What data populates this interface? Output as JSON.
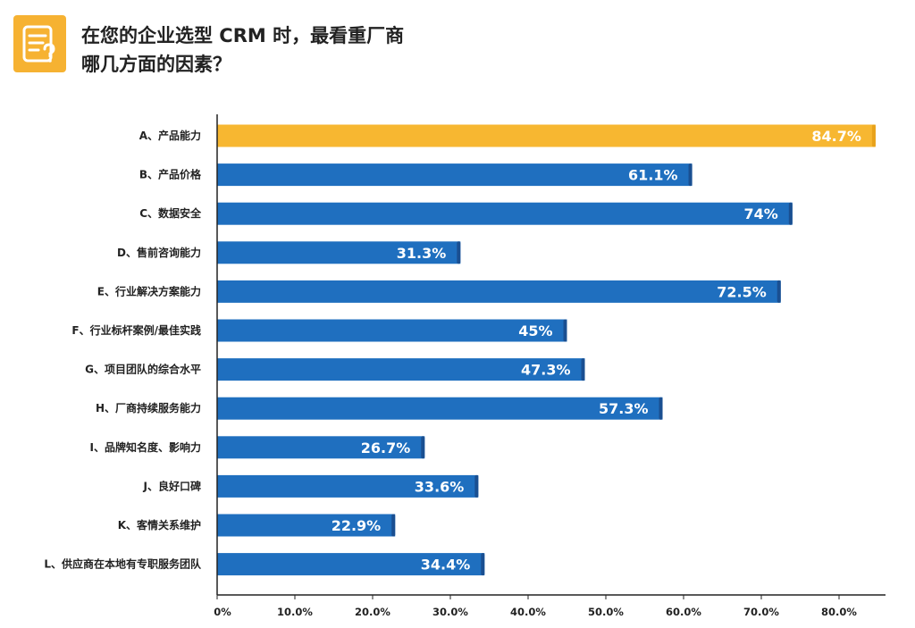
{
  "header": {
    "icon": "survey-question-icon",
    "title_line1": "在您的企业选型 CRM 时，最看重厂商",
    "title_line2": "哪几方面的因素？"
  },
  "colors": {
    "highlight": "#f7b731",
    "bar": "#1f6fbf",
    "bar_edge": "#1a4f91",
    "icon_bg": "#f6b232",
    "axis": "#222222"
  },
  "chart_data": {
    "type": "bar",
    "orientation": "horizontal",
    "categories": [
      "A、产品能力",
      "B、产品价格",
      "C、数据安全",
      "D、售前咨询能力",
      "E、行业解决方案能力",
      "F、行业标杆案例/最佳实践",
      "G、项目团队的综合水平",
      "H、厂商持续服务能力",
      "I、品牌知名度、影响力",
      "J、良好口碑",
      "K、客情关系维护",
      "L、供应商在本地有专职服务团队"
    ],
    "values": [
      84.7,
      61.1,
      74,
      31.3,
      72.5,
      45,
      47.3,
      57.3,
      26.7,
      33.6,
      22.9,
      34.4
    ],
    "value_labels": [
      "84.7%",
      "61.1%",
      "74%",
      "31.3%",
      "72.5%",
      "45%",
      "47.3%",
      "57.3%",
      "26.7%",
      "33.6%",
      "22.9%",
      "34.4%"
    ],
    "highlight_index": 0,
    "xlim": [
      0,
      85
    ],
    "x_ticks": [
      0,
      10,
      20,
      30,
      40,
      50,
      60,
      70,
      80
    ],
    "x_tick_labels": [
      "0%",
      "10.0%",
      "20.0%",
      "30.0%",
      "40.0%",
      "50.0%",
      "60.0%",
      "70.0%",
      "80.0%"
    ],
    "grid": false,
    "legend": "none"
  }
}
